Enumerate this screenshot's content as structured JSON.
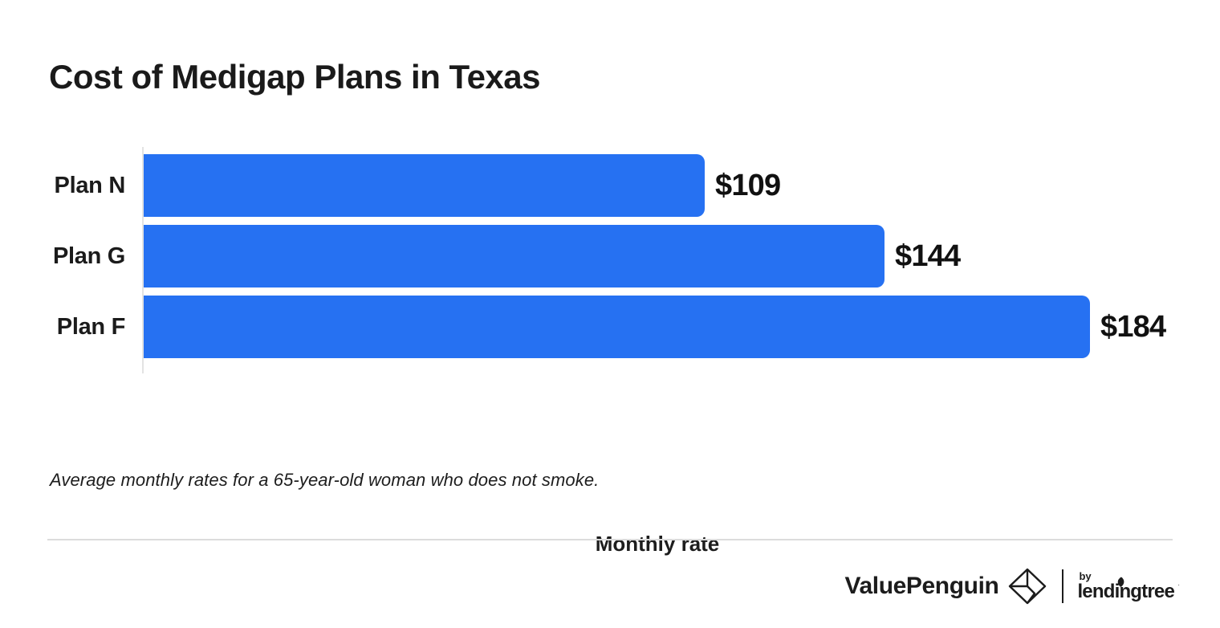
{
  "title": "Cost of Medigap Plans in Texas",
  "chart_data": {
    "type": "bar",
    "orientation": "horizontal",
    "categories": [
      "Plan N",
      "Plan G",
      "Plan F"
    ],
    "values": [
      109,
      144,
      184
    ],
    "value_labels": [
      "$109",
      "$144",
      "$184"
    ],
    "title": "Cost of Medigap Plans in Texas",
    "xlabel": "Monthly rate",
    "ylabel": "",
    "xlim": [
      0,
      200
    ],
    "grid": false,
    "legend": false,
    "bar_color": "#2671F2",
    "axis_line_color": "#e3e3e3",
    "label_color": "#1b1b1b",
    "value_label_color": "#111111"
  },
  "footnote": "Average monthly rates for a 65-year-old woman who does not smoke.",
  "footer": {
    "valuepenguin_label": "ValuePenguin",
    "by_label": "by",
    "lendingtree_label": "lendingtree",
    "trademark": "·"
  },
  "colors": {
    "background": "#ffffff",
    "divider": "#dcdcdc",
    "brand_text": "#1c1c1c"
  }
}
